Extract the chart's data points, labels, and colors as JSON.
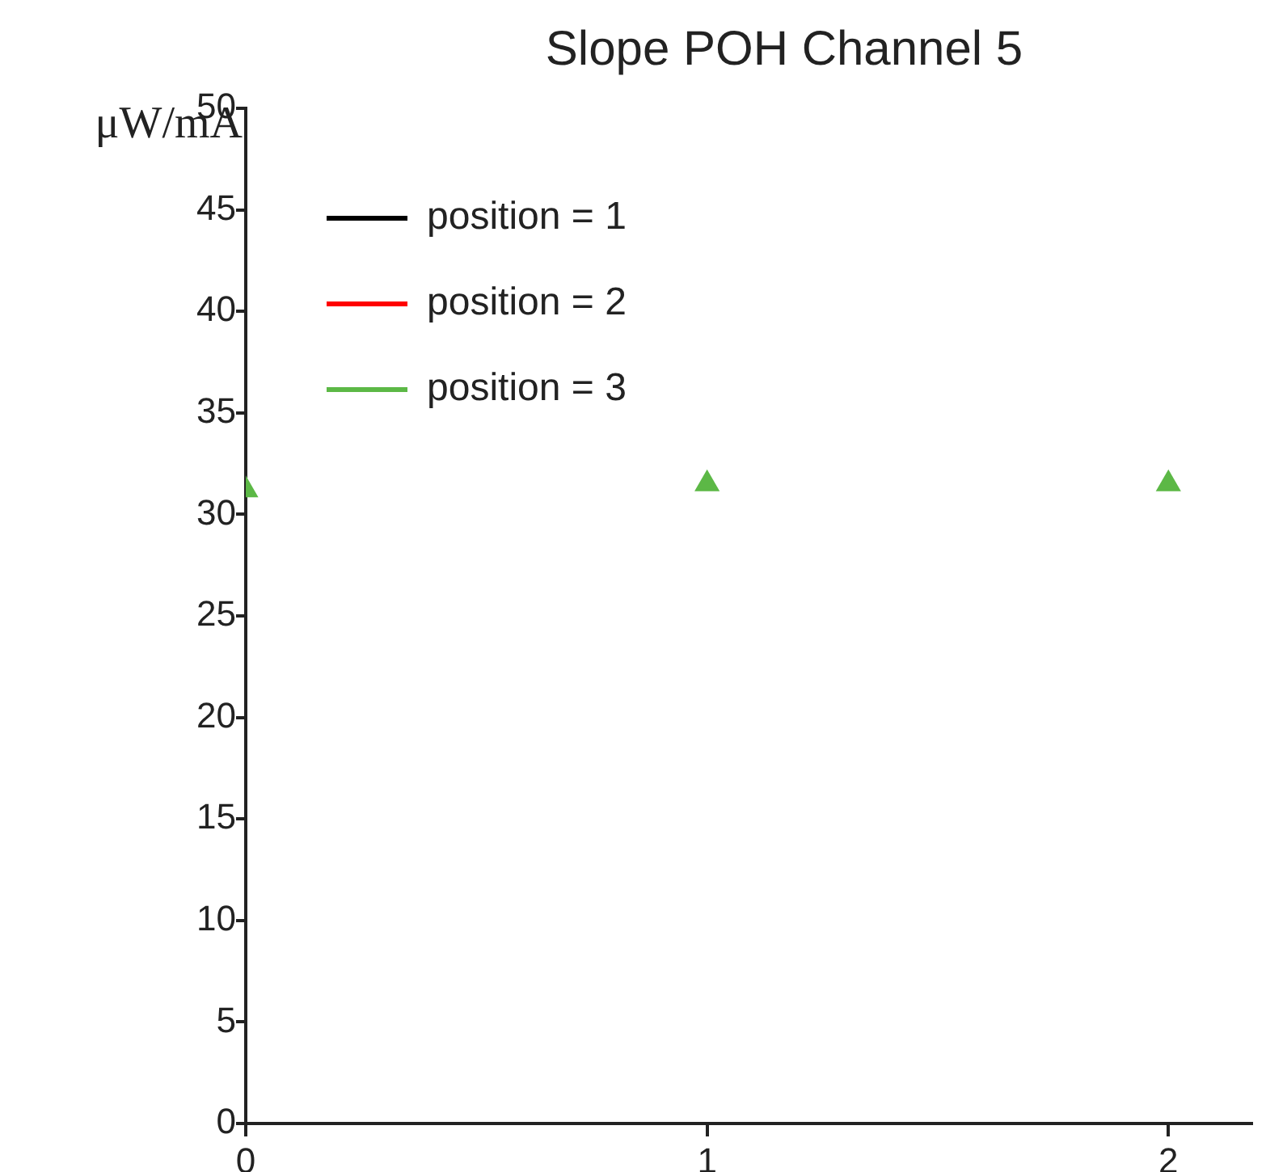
{
  "chart_data": {
    "type": "scatter",
    "title": "Slope POH Channel 5",
    "ylabel": "μW/mA",
    "x": [
      0,
      1,
      2
    ],
    "series": [
      {
        "name": "position = 1",
        "color": "#000000",
        "values": [
          null,
          null,
          null
        ]
      },
      {
        "name": "position = 2",
        "color": "#ff0000",
        "values": [
          null,
          null,
          null
        ]
      },
      {
        "name": "position = 3",
        "color": "#5cb846",
        "values": [
          31.2,
          31.5,
          31.5
        ]
      }
    ],
    "xlim": [
      0,
      2.18
    ],
    "xticks": [
      0,
      1,
      2
    ],
    "ylim": [
      0,
      50
    ],
    "yticks": [
      0,
      5,
      10,
      15,
      20,
      25,
      30,
      35,
      40,
      45,
      50
    ],
    "marker": "triangle",
    "grid": false,
    "legend": "top left"
  }
}
